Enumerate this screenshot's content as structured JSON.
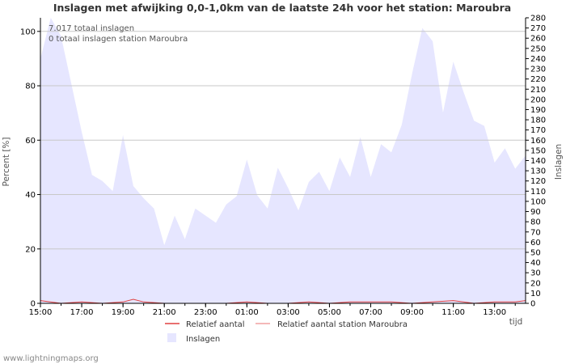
{
  "chart_data": {
    "type": "area",
    "title": "Inslagen met afwijking 0,0-1,0km van de laatste 24h voor het station: Maroubra",
    "ylabel_left": "Percent   [%]",
    "ylabel_right": "Inslagen",
    "xlabel": "tijd",
    "ylim_left": [
      0,
      105
    ],
    "ylim_right": [
      0,
      280
    ],
    "yticks_left": [
      0,
      20,
      40,
      60,
      80,
      100
    ],
    "yticks_right": [
      0,
      10,
      20,
      30,
      40,
      50,
      60,
      70,
      80,
      90,
      100,
      110,
      120,
      130,
      140,
      150,
      160,
      170,
      180,
      190,
      200,
      210,
      220,
      230,
      240,
      250,
      260,
      270,
      280
    ],
    "x_tick_labels": [
      "15:00",
      "17:00",
      "19:00",
      "21:00",
      "23:00",
      "01:00",
      "03:00",
      "05:00",
      "07:00",
      "09:00",
      "11:00",
      "13:00"
    ],
    "x_range_hours": [
      0,
      23.5
    ],
    "annotations": [
      "7.017 totaal inslagen",
      "0 totaal inslagen station Maroubra"
    ],
    "legend": [
      {
        "label": "Relatief aantal",
        "color": "#e04040"
      },
      {
        "label": "Relatief aantal station Maroubra",
        "color": "#f0a0a0"
      },
      {
        "label": "Inslagen",
        "color": "#e6e6ff"
      }
    ],
    "series": [
      {
        "name": "Inslagen",
        "axis": "right",
        "color": "#e6e6ff",
        "x": [
          0,
          0.5,
          1,
          1.5,
          2,
          2.5,
          3,
          3.5,
          4,
          4.5,
          5,
          5.5,
          6,
          6.5,
          7,
          7.5,
          8,
          8.5,
          9,
          9.5,
          10,
          10.5,
          11,
          11.5,
          12,
          12.5,
          13,
          13.5,
          14,
          14.5,
          15,
          15.5,
          16,
          16.5,
          17,
          17.5,
          18,
          18.5,
          19,
          19.5,
          20,
          20.5,
          21,
          21.5,
          22,
          22.5,
          23,
          23.5
        ],
        "values": [
          240,
          280,
          262,
          215,
          168,
          126,
          120,
          110,
          165,
          115,
          103,
          93,
          57,
          86,
          63,
          93,
          86,
          79,
          97,
          105,
          141,
          106,
          93,
          133,
          113,
          91,
          119,
          129,
          110,
          143,
          124,
          163,
          124,
          156,
          148,
          175,
          225,
          270,
          257,
          187,
          237,
          207,
          179,
          174,
          138,
          152,
          132,
          145
        ]
      },
      {
        "name": "Relatief aantal",
        "axis": "left",
        "color": "#e04040",
        "x": [
          0,
          1,
          2,
          3,
          4,
          4.5,
          5,
          6,
          7,
          8,
          9,
          10,
          11,
          12,
          13,
          14,
          15,
          16,
          17,
          18,
          19,
          20,
          21,
          22,
          23,
          23.5
        ],
        "values": [
          1,
          0,
          0.5,
          0,
          0.5,
          1.5,
          0.5,
          0,
          0,
          0,
          0,
          0.5,
          0,
          0,
          0.5,
          0,
          0.5,
          0.5,
          0.5,
          0,
          0.5,
          1,
          0,
          0.5,
          0.5,
          1
        ]
      },
      {
        "name": "Relatief aantal station Maroubra",
        "axis": "left",
        "color": "#f0a0a0",
        "x": [
          0,
          23.5
        ],
        "values": [
          0,
          0
        ]
      }
    ]
  },
  "footer": "www.lightningmaps.org"
}
